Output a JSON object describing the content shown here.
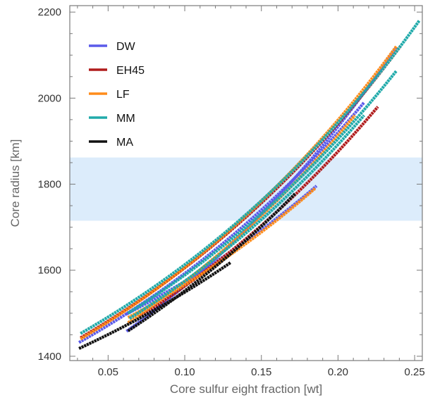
{
  "chart_data": {
    "type": "scatter",
    "title": "",
    "xlabel": "Core sulfur eight fraction [wt]",
    "ylabel": "Core radius  [km]",
    "xlim": [
      0.025,
      0.255
    ],
    "ylim": [
      1390,
      2215
    ],
    "xticks": [
      0.05,
      0.1,
      0.15,
      0.2,
      0.25
    ],
    "xtick_labels": [
      "0.05",
      "0.10",
      "0.15",
      "0.20",
      "0.25"
    ],
    "yticks": [
      1400,
      1600,
      1800,
      2000,
      2200
    ],
    "ytick_labels": [
      "1400",
      "1600",
      "1800",
      "2000",
      "2200"
    ],
    "grid": false,
    "legend_position": "top-left",
    "band": {
      "y_min": 1715,
      "y_max": 1862,
      "color": "#dcecfb"
    },
    "series": [
      {
        "name": "DW",
        "color": "#5b5bea",
        "curves": [
          {
            "x_start": 0.031,
            "x_end": 0.217,
            "y_start": 1432,
            "y_end": 1990
          },
          {
            "x_start": 0.062,
            "x_end": 0.186,
            "y_start": 1498,
            "y_end": 1796
          },
          {
            "x_start": 0.062,
            "x_end": 0.238,
            "y_start": 1458,
            "y_end": 2118
          }
        ]
      },
      {
        "name": "EH45",
        "color": "#b01c1c",
        "curves": [
          {
            "x_start": 0.032,
            "x_end": 0.241,
            "y_start": 1443,
            "y_end": 2122
          },
          {
            "x_start": 0.07,
            "x_end": 0.226,
            "y_start": 1491,
            "y_end": 1980
          }
        ]
      },
      {
        "name": "LF",
        "color": "#ff8c1a",
        "curves": [
          {
            "x_start": 0.032,
            "x_end": 0.238,
            "y_start": 1440,
            "y_end": 2120
          },
          {
            "x_start": 0.063,
            "x_end": 0.211,
            "y_start": 1478,
            "y_end": 1960
          },
          {
            "x_start": 0.063,
            "x_end": 0.185,
            "y_start": 1490,
            "y_end": 1790
          }
        ]
      },
      {
        "name": "MM",
        "color": "#20aaaa",
        "curves": [
          {
            "x_start": 0.032,
            "x_end": 0.253,
            "y_start": 1453,
            "y_end": 2180
          },
          {
            "x_start": 0.063,
            "x_end": 0.238,
            "y_start": 1500,
            "y_end": 2063
          },
          {
            "x_start": 0.064,
            "x_end": 0.217,
            "y_start": 1488,
            "y_end": 1960
          }
        ]
      },
      {
        "name": "MA",
        "color": "#111111",
        "curves": [
          {
            "x_start": 0.031,
            "x_end": 0.13,
            "y_start": 1418,
            "y_end": 1618
          },
          {
            "x_start": 0.063,
            "x_end": 0.172,
            "y_start": 1459,
            "y_end": 1778
          }
        ]
      }
    ]
  }
}
